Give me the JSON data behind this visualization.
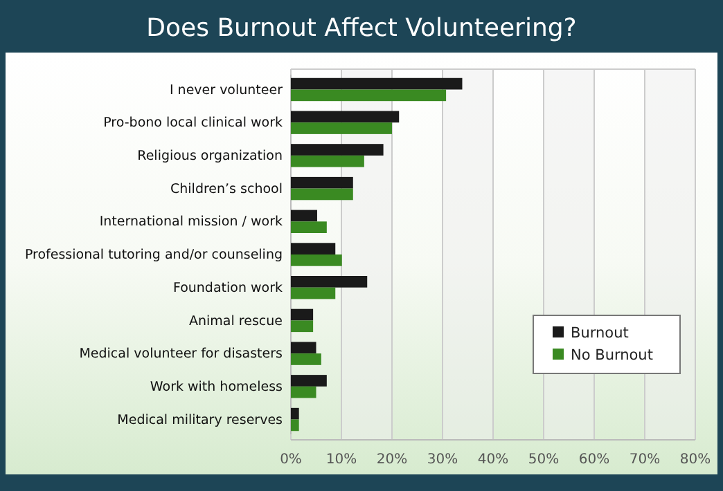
{
  "chart_data": {
    "type": "bar",
    "orientation": "horizontal",
    "title": "Does Burnout Affect Volunteering?",
    "categories": [
      "I never volunteer",
      "Pro-bono local clinical work",
      "Religious organization",
      "Children’s school",
      "International mission / work",
      "Professional tutoring and/or counseling",
      "Foundation work",
      "Animal rescue",
      "Medical volunteer for disasters",
      "Work with homeless",
      "Medical military reserves"
    ],
    "series": [
      {
        "name": "Burnout",
        "color": "#1a1a1a",
        "values": [
          33.9,
          21.4,
          18.3,
          12.3,
          5.2,
          8.8,
          15.1,
          4.4,
          5.0,
          7.1,
          1.6
        ]
      },
      {
        "name": "No Burnout",
        "color": "#3a8a22",
        "values": [
          30.7,
          20.0,
          14.5,
          12.3,
          7.1,
          10.1,
          8.8,
          4.4,
          6.0,
          5.0,
          1.6
        ]
      }
    ],
    "xlim": [
      0,
      80
    ],
    "xticks": [
      {
        "value": 0,
        "label": "0%"
      },
      {
        "value": 10,
        "label": "10%"
      },
      {
        "value": 20,
        "label": "20%"
      },
      {
        "value": 30,
        "label": "30%"
      },
      {
        "value": 40,
        "label": "40%"
      },
      {
        "value": 50,
        "label": "50%"
      },
      {
        "value": 60,
        "label": "60%"
      },
      {
        "value": 70,
        "label": "70%"
      },
      {
        "value": 80,
        "label": "80%"
      }
    ],
    "grid": "x",
    "legend": "right"
  }
}
